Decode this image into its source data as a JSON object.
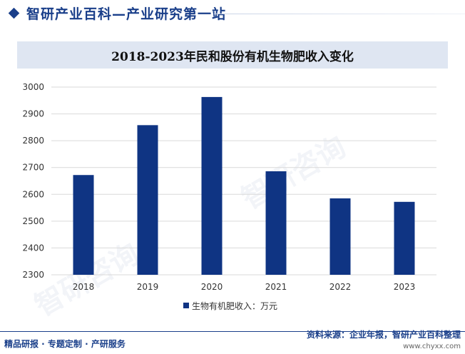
{
  "header": {
    "brand_title": "智研产业百科—产业研究第一站"
  },
  "watermark": "智研咨询",
  "colors": {
    "bar": "#0f3483",
    "brand": "#1a3f8a",
    "grid": "#d9d9d9"
  },
  "chart_data": {
    "type": "bar",
    "title": "2018-2023年民和股份有机生物肥收入变化",
    "categories": [
      "2018",
      "2019",
      "2020",
      "2021",
      "2022",
      "2023"
    ],
    "series": [
      {
        "name": "生物有机肥收入：万元",
        "values": [
          2672,
          2858,
          2963,
          2686,
          2585,
          2572
        ]
      }
    ],
    "ylim": [
      2300,
      3000
    ],
    "yticks": [
      2300,
      2400,
      2500,
      2600,
      2700,
      2800,
      2900,
      3000
    ],
    "grid": true,
    "legend": "bottom"
  },
  "footer": {
    "left": "精品研报 · 专题定制 · 产研服务",
    "source": "资料来源：企业年报，智研产业百科整理",
    "url": "www.chyxx.com"
  }
}
